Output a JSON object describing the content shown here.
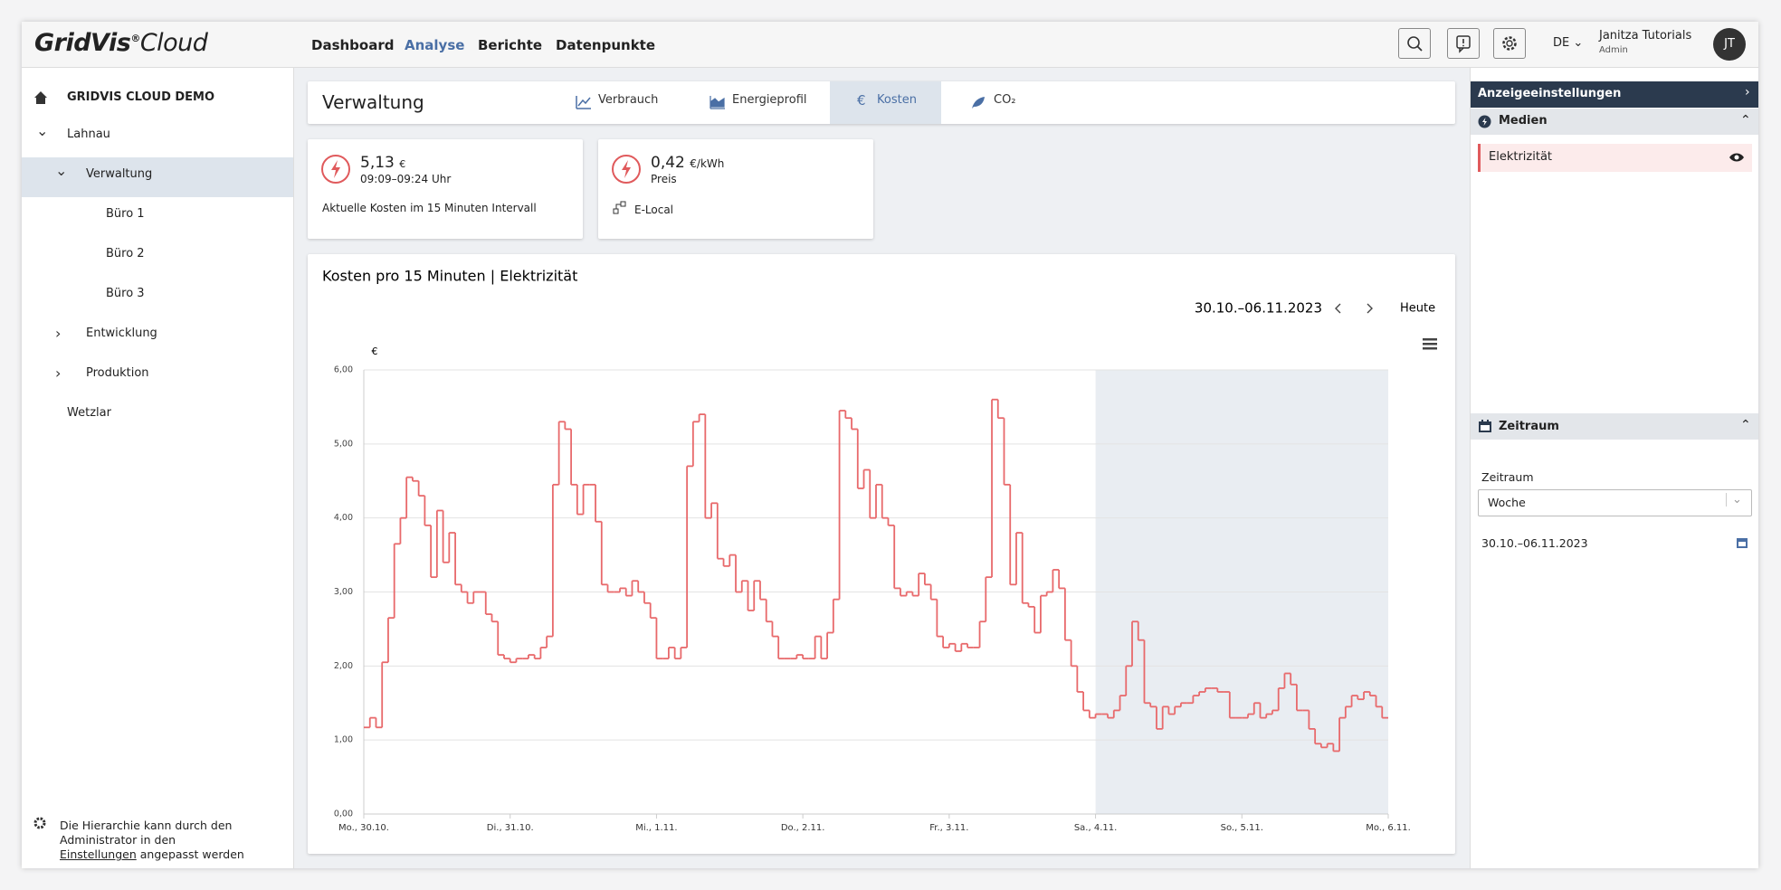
{
  "header": {
    "logo": "GridVis",
    "logo_mark": "®",
    "logo_sub": "Cloud",
    "nav": [
      "Dashboard",
      "Analyse",
      "Berichte",
      "Datenpunkte"
    ],
    "language": "DE",
    "user": "Janitza Tutorials",
    "role": "Admin",
    "avatar": "JT"
  },
  "sidebar": {
    "root": "GRIDVIS CLOUD DEMO",
    "tree": [
      {
        "label": "Lahnau",
        "depth": 0,
        "expanded": true
      },
      {
        "label": "Verwaltung",
        "depth": 1,
        "expanded": true,
        "selected": true
      },
      {
        "label": "Büro 1",
        "depth": 2
      },
      {
        "label": "Büro 2",
        "depth": 2
      },
      {
        "label": "Büro 3",
        "depth": 2
      },
      {
        "label": "Entwicklung",
        "depth": 1,
        "expanded": false
      },
      {
        "label": "Produktion",
        "depth": 1,
        "expanded": false
      },
      {
        "label": "Wetzlar",
        "depth": 0
      }
    ],
    "footer_before": "Die Hierarchie kann durch den Administrator in den",
    "footer_link": "Einstellungen",
    "footer_after": "angepasst werden"
  },
  "page": {
    "title": "Verwaltung",
    "tabs": [
      "Verbrauch",
      "Energieprofil",
      "Kosten",
      "CO₂"
    ]
  },
  "kpis": [
    {
      "value": "5,13",
      "unit": "€",
      "sub": "09:09–09:24 Uhr",
      "desc": "Aktuelle Kosten im 15 Minuten Intervall"
    },
    {
      "value": "0,42",
      "unit": "€/kWh",
      "sub": "Preis",
      "desc": "E-Local"
    }
  ],
  "panel": {
    "heading": "Anzeigeeinstellungen",
    "media_section": "Medien",
    "media_item": "Elektrizität",
    "time_section": "Zeitraum",
    "time_label": "Zeitraum",
    "time_select": "Woche",
    "time_range": "30.10.–06.11.2023"
  },
  "chart_data": {
    "type": "line",
    "step": true,
    "title": "Kosten pro 15 Minuten | Elektrizität",
    "date_range": "30.10.–06.11.2023",
    "today_button": "Heute",
    "y_unit": "€",
    "color": "#e8696b",
    "grid": true,
    "shaded_x": [
      120,
      168
    ],
    "x": [
      0,
      1,
      2,
      3,
      4,
      5,
      6,
      7,
      8,
      9,
      10,
      11,
      12,
      13,
      14,
      15,
      16,
      17,
      18,
      19,
      20,
      21,
      22,
      23,
      24,
      25,
      26,
      27,
      28,
      29,
      30,
      31,
      32,
      33,
      34,
      35,
      36,
      37,
      38,
      39,
      40,
      41,
      42,
      43,
      44,
      45,
      46,
      47,
      48,
      49,
      50,
      51,
      52,
      53,
      54,
      55,
      56,
      57,
      58,
      59,
      60,
      61,
      62,
      63,
      64,
      65,
      66,
      67,
      68,
      69,
      70,
      71,
      72,
      73,
      74,
      75,
      76,
      77,
      78,
      79,
      80,
      81,
      82,
      83,
      84,
      85,
      86,
      87,
      88,
      89,
      90,
      91,
      92,
      93,
      94,
      95,
      96,
      97,
      98,
      99,
      100,
      101,
      102,
      103,
      104,
      105,
      106,
      107,
      108,
      109,
      110,
      111,
      112,
      113,
      114,
      115,
      116,
      117,
      118,
      119,
      120,
      121,
      122,
      123,
      124,
      125,
      126,
      127,
      128,
      129,
      130,
      131,
      132,
      133,
      134,
      135,
      136,
      137,
      138,
      139,
      140,
      141,
      142,
      143,
      144,
      145,
      146,
      147,
      148,
      149,
      150,
      151,
      152,
      153,
      154,
      155,
      156,
      157,
      158,
      159,
      160,
      161,
      162,
      163,
      164,
      165,
      166,
      167
    ],
    "values": [
      1.17,
      1.3,
      1.17,
      2.05,
      2.65,
      3.65,
      4.0,
      4.55,
      4.5,
      4.3,
      3.9,
      3.2,
      4.1,
      3.4,
      3.8,
      3.1,
      3.0,
      2.85,
      3.0,
      3.0,
      2.7,
      2.6,
      2.15,
      2.1,
      2.05,
      2.1,
      2.1,
      2.15,
      2.1,
      2.25,
      2.4,
      4.45,
      5.3,
      5.2,
      4.45,
      4.05,
      4.45,
      4.45,
      3.95,
      3.1,
      3.0,
      3.0,
      3.05,
      2.95,
      3.15,
      3.0,
      2.85,
      2.65,
      2.1,
      2.1,
      2.25,
      2.1,
      2.25,
      4.7,
      5.3,
      5.4,
      4.0,
      4.2,
      3.45,
      3.35,
      3.5,
      3.0,
      3.15,
      2.75,
      3.15,
      2.9,
      2.6,
      2.4,
      2.1,
      2.1,
      2.1,
      2.15,
      2.1,
      2.1,
      2.4,
      2.1,
      2.45,
      2.9,
      5.45,
      5.35,
      5.2,
      4.4,
      4.65,
      4.0,
      4.45,
      4.0,
      3.9,
      3.05,
      2.95,
      3.0,
      2.95,
      3.25,
      3.1,
      2.9,
      2.4,
      2.25,
      2.3,
      2.2,
      2.3,
      2.25,
      2.25,
      2.6,
      3.2,
      5.6,
      5.35,
      4.45,
      3.1,
      3.8,
      2.85,
      2.8,
      2.45,
      2.95,
      3.0,
      3.3,
      3.05,
      2.35,
      2.0,
      1.65,
      1.4,
      1.3,
      1.35,
      1.35,
      1.3,
      1.4,
      1.6,
      2.0,
      2.6,
      2.35,
      1.5,
      1.45,
      1.15,
      1.45,
      1.35,
      1.45,
      1.5,
      1.5,
      1.6,
      1.65,
      1.7,
      1.7,
      1.65,
      1.65,
      1.3,
      1.3,
      1.3,
      1.35,
      1.5,
      1.3,
      1.35,
      1.4,
      1.7,
      1.9,
      1.75,
      1.4,
      1.4,
      1.15,
      0.95,
      0.9,
      0.95,
      0.85,
      1.3,
      1.45,
      1.6,
      1.55,
      1.65,
      1.6,
      1.45,
      1.3
    ],
    "xlim": [
      0,
      168
    ],
    "xticks": [
      {
        "value": 0,
        "label": "Mo., 30.10."
      },
      {
        "value": 24,
        "label": "Di., 31.10."
      },
      {
        "value": 48,
        "label": "Mi., 1.11."
      },
      {
        "value": 72,
        "label": "Do., 2.11."
      },
      {
        "value": 96,
        "label": "Fr., 3.11."
      },
      {
        "value": 120,
        "label": "Sa., 4.11."
      },
      {
        "value": 144,
        "label": "So., 5.11."
      },
      {
        "value": 168,
        "label": "Mo., 6.11."
      }
    ],
    "ylim": [
      0,
      6
    ],
    "yticks": [
      {
        "value": 0,
        "label": "0,00"
      },
      {
        "value": 1,
        "label": "1,00"
      },
      {
        "value": 2,
        "label": "2,00"
      },
      {
        "value": 3,
        "label": "3,00"
      },
      {
        "value": 4,
        "label": "4,00"
      },
      {
        "value": 5,
        "label": "5,00"
      },
      {
        "value": 6,
        "label": "6,00"
      }
    ]
  }
}
